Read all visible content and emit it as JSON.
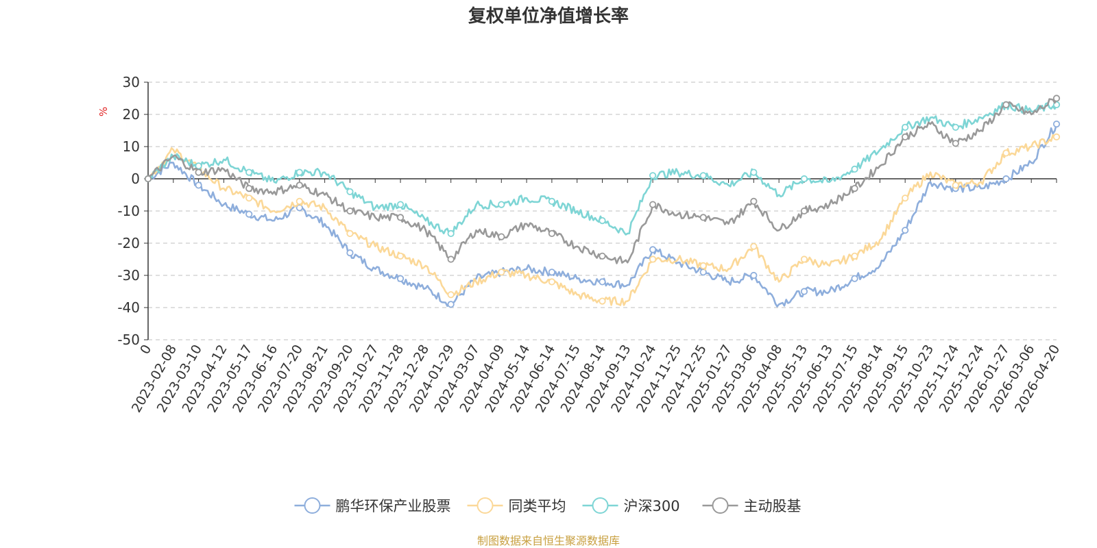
{
  "chart_data": {
    "type": "line",
    "title": "复权单位净值增长率",
    "ylabel": "%",
    "ylim": [
      -50,
      30
    ],
    "yticks": [
      30,
      20,
      10,
      0,
      -10,
      -20,
      -30,
      -40,
      -50
    ],
    "grid": true,
    "legend_position": "bottom-center",
    "categories": [
      "0",
      "2023-02-08",
      "2023-03-10",
      "2023-04-12",
      "2023-05-17",
      "2023-06-16",
      "2023-07-20",
      "2023-08-21",
      "2023-09-20",
      "2023-10-27",
      "2023-11-28",
      "2023-12-28",
      "2024-01-29",
      "2024-03-07",
      "2024-04-09",
      "2024-05-14",
      "2024-06-14",
      "2024-07-15",
      "2024-08-14",
      "2024-09-13",
      "2024-10-24",
      "2024-11-25",
      "2024-12-25",
      "2025-01-27",
      "2025-03-06",
      "2025-04-08",
      "2025-05-13",
      "2025-06-13",
      "2025-07-15",
      "2025-08-14",
      "2025-09-15",
      "2025-10-23",
      "2025-11-24",
      "2025-12-24",
      "2026-01-27",
      "2026-03-06",
      "2026-04-20"
    ],
    "series": [
      {
        "name": "鹏华环保产业股票",
        "color": "#8eaedc",
        "values": [
          0,
          5,
          -2,
          -8,
          -11,
          -13,
          -9,
          -14,
          -23,
          -28,
          -31,
          -34,
          -39,
          -31,
          -29,
          -28,
          -29,
          -31,
          -32,
          -33,
          -22,
          -26,
          -29,
          -32,
          -30,
          -39,
          -35,
          -35,
          -31,
          -27,
          -16,
          -1,
          -3,
          -3,
          0,
          5,
          17
        ]
      },
      {
        "name": "同类平均",
        "color": "#fbd898",
        "values": [
          0,
          9,
          3,
          -3,
          -6,
          -10,
          -7,
          -9,
          -17,
          -21,
          -24,
          -27,
          -36,
          -32,
          -29,
          -30,
          -32,
          -36,
          -38,
          -38,
          -25,
          -25,
          -27,
          -28,
          -21,
          -32,
          -25,
          -27,
          -24,
          -19,
          -6,
          2,
          -2,
          -1,
          8,
          10,
          13
        ]
      },
      {
        "name": "沪深300",
        "color": "#7ed5d5",
        "values": [
          0,
          7,
          4,
          6,
          2,
          -1,
          2,
          2,
          -4,
          -9,
          -8,
          -13,
          -17,
          -8,
          -8,
          -6,
          -7,
          -10,
          -13,
          -17,
          1,
          2,
          1,
          -2,
          2,
          -5,
          0,
          -1,
          3,
          9,
          16,
          19,
          16,
          19,
          23,
          21,
          23
        ]
      },
      {
        "name": "主动股基",
        "color": "#999999",
        "values": [
          0,
          7,
          2,
          3,
          -3,
          -4,
          -2,
          -5,
          -10,
          -12,
          -12,
          -16,
          -25,
          -16,
          -18,
          -14,
          -17,
          -21,
          -24,
          -26,
          -8,
          -11,
          -12,
          -14,
          -7,
          -16,
          -10,
          -8,
          -3,
          4,
          13,
          17,
          11,
          15,
          23,
          20,
          25
        ]
      }
    ]
  },
  "source_note": {
    "text": "制图数据来自恒生聚源数据库",
    "color": "#c8a040"
  }
}
